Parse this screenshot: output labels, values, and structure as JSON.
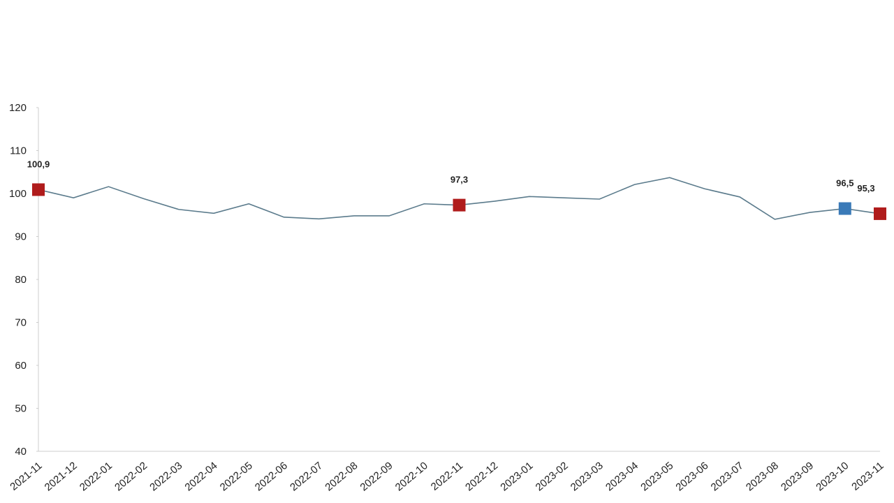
{
  "chart_data": {
    "type": "line",
    "categories": [
      "2021-11",
      "2021-12",
      "2022-01",
      "2022-02",
      "2022-03",
      "2022-04",
      "2022-05",
      "2022-06",
      "2022-07",
      "2022-08",
      "2022-09",
      "2022-10",
      "2022-11",
      "2022-12",
      "2023-01",
      "2023-02",
      "2023-03",
      "2023-04",
      "2023-05",
      "2023-06",
      "2023-07",
      "2023-08",
      "2023-09",
      "2023-10",
      "2023-11"
    ],
    "series": [
      {
        "color": "#5b7b8c",
        "values": [
          100.9,
          99.0,
          101.6,
          98.8,
          96.3,
          95.4,
          97.6,
          94.5,
          94.1,
          94.8,
          94.8,
          97.6,
          97.3,
          98.2,
          99.3,
          99.0,
          98.7,
          102.1,
          103.7,
          101.1,
          99.2,
          94.0,
          95.6,
          96.5,
          95.3
        ],
        "value_labels": [
          "100,9",
          null,
          null,
          null,
          null,
          null,
          null,
          null,
          null,
          null,
          null,
          null,
          "97,3",
          null,
          null,
          null,
          null,
          null,
          null,
          null,
          null,
          null,
          null,
          "96,5",
          "95,3"
        ],
        "marker_colors": [
          "#b01c1c",
          null,
          null,
          null,
          null,
          null,
          null,
          null,
          null,
          null,
          null,
          null,
          "#b01c1c",
          null,
          null,
          null,
          null,
          null,
          null,
          null,
          null,
          null,
          null,
          "#3a7ab8",
          "#b01c1c"
        ]
      }
    ],
    "ylim": [
      40,
      120
    ],
    "yticks": [
      40,
      50,
      60,
      70,
      80,
      90,
      100,
      110,
      120
    ],
    "grid": false
  }
}
